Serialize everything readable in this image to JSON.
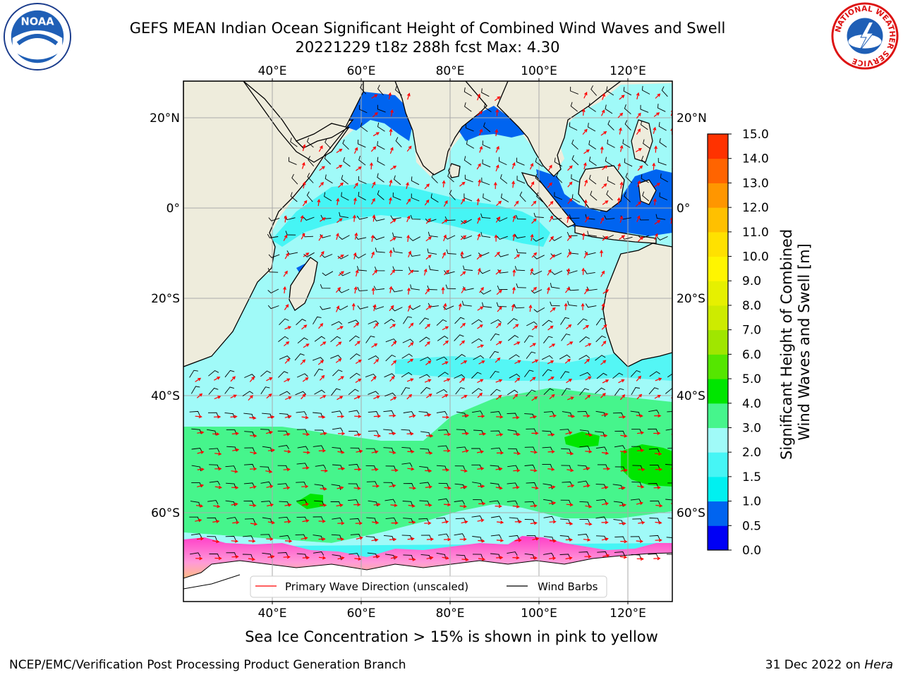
{
  "title": {
    "line1": "GEFS MEAN Indian Ocean Significant Height of Combined Wind Waves and Swell",
    "line2": "20221229 t18z 288h fcst   Max: 4.30"
  },
  "map": {
    "lon_labels": [
      "40°E",
      "60°E",
      "80°E",
      "100°E",
      "120°E"
    ],
    "lat_labels": [
      "20°N",
      "0°",
      "20°S",
      "40°S",
      "60°S"
    ],
    "legend": {
      "wave_label": "Primary Wave Direction (unscaled)",
      "wind_label": "Wind Barbs"
    }
  },
  "colorbar": {
    "label_line1": "Significant Height of Combined",
    "label_line2": "Wind Waves and Swell [m]",
    "ticks": [
      "0.0",
      "0.5",
      "1.0",
      "1.5",
      "2.0",
      "3.0",
      "4.0",
      "5.0",
      "6.0",
      "7.0",
      "8.0",
      "9.0",
      "10.0",
      "11.0",
      "12.0",
      "13.0",
      "14.0",
      "15.0"
    ],
    "colors": [
      "#0000f5",
      "#0064f0",
      "#00f0f0",
      "#46f5f5",
      "#a0faf8",
      "#46f58c",
      "#00e600",
      "#55e600",
      "#a0e600",
      "#cdeb00",
      "#e6f000",
      "#fff500",
      "#ffe100",
      "#ffc000",
      "#ff9600",
      "#ff6400",
      "#ff3200",
      "#ff0000"
    ]
  },
  "caption": "Sea Ice Concentration > 15% is shown in pink to yellow",
  "footer": {
    "left": "NCEP/EMC/Verification Post Processing Product Generation Branch",
    "right_prefix": "31 Dec 2022 on",
    "right_host": "Hera"
  },
  "logos": {
    "noaa": "NOAA",
    "nws_ring": "NATIONAL WEATHER SERVICE"
  }
}
